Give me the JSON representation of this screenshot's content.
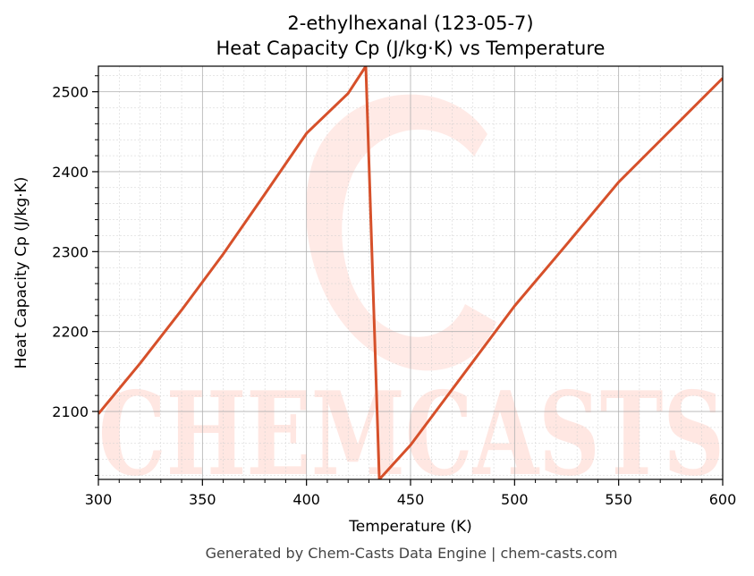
{
  "chart_data": {
    "type": "line",
    "title": "2-ethylhexanal (123-05-7)",
    "subtitle": "Heat Capacity Cp (J/kg·K) vs Temperature",
    "xlabel": "Temperature (K)",
    "ylabel": "Heat Capacity Cp (J/kg·K)",
    "xlim": [
      300,
      600
    ],
    "ylim": [
      2015,
      2532
    ],
    "xticks": [
      300,
      350,
      400,
      450,
      500,
      550,
      600
    ],
    "yticks": [
      2100,
      2200,
      2300,
      2400,
      2500
    ],
    "grid": true,
    "series": [
      {
        "color": "#d6502a",
        "x": [
          300,
          320,
          340,
          360,
          380,
          400,
          420,
          428.5,
          435,
          450,
          475,
          500,
          525,
          550,
          575,
          600
        ],
        "y": [
          2097,
          2160,
          2227,
          2297,
          2372,
          2448,
          2498,
          2532,
          2015,
          2058,
          2145,
          2232,
          2309,
          2387,
          2452,
          2517
        ]
      }
    ],
    "watermark": "CHEMCASTS",
    "footer": "Generated by Chem-Casts Data Engine | chem-casts.com"
  }
}
